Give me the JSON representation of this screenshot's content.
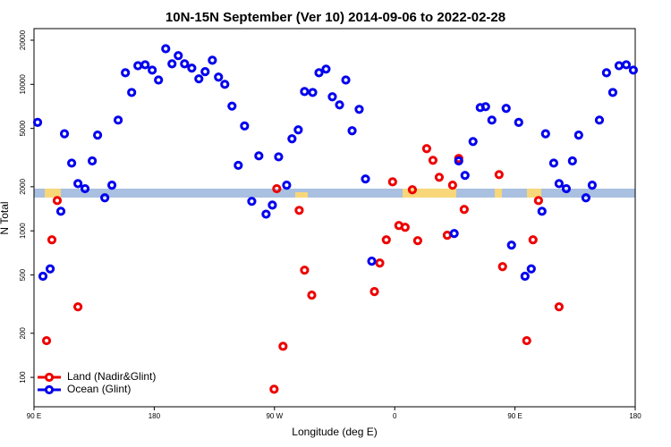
{
  "chart_data": {
    "type": "scatter",
    "title": "10N-15N September (Ver 10)   2014-09-06 to 2022-02-28",
    "x_label": "Longitude (deg E)",
    "y_label": "N Total",
    "log_y": true,
    "legend": "bottom-left",
    "xlim": [
      90,
      540
    ],
    "ylim": [
      63,
      24000
    ],
    "xticks": [
      {
        "value": 90,
        "label": "90 E"
      },
      180,
      {
        "value": 270,
        "label": "90 W"
      },
      {
        "value": 360,
        "label": "0"
      },
      {
        "value": 450,
        "label": "90 E"
      },
      {
        "value": 540,
        "label": "180"
      }
    ],
    "yticks": [
      100,
      200,
      500,
      1000,
      2000,
      5000,
      10000,
      20000
    ],
    "series": [
      {
        "name": "Land (Nadir&Glint)",
        "color": "#ee0000",
        "x": [
          99.4,
          103.4,
          107.4,
          122.9,
          271.7,
          276.4,
          269.7,
          288.5,
          292.5,
          297.9,
          344.8,
          348.8,
          353.7,
          358.4,
          363.1,
          367.8,
          373.2,
          377.2,
          383.9,
          388.6,
          393.3,
          399.3,
          403.3,
          407.9,
          412.0,
          438.1,
          440.7,
          458.8,
          463.5,
          467.6,
          483.0
        ],
        "values": [
          178,
          869,
          1610,
          303,
          1940,
          163,
          83,
          1380,
          539,
          364,
          385,
          603,
          869,
          2160,
          1088,
          1057,
          1907,
          857,
          3640,
          3030,
          2320,
          933,
          2050,
          3120,
          1400,
          2420,
          570,
          178,
          869,
          1610,
          303
        ]
      },
      {
        "name": "Ocean (Glint)",
        "color": "#0000ee",
        "x": [
          92.7,
          96.7,
          102.1,
          110.1,
          112.8,
          118.2,
          122.9,
          128.2,
          133.6,
          137.6,
          143.0,
          148.3,
          153.0,
          158.4,
          163.1,
          167.8,
          173.2,
          178.5,
          183.2,
          188.6,
          193.3,
          198.0,
          202.7,
          208.1,
          213.4,
          218.1,
          223.5,
          228.1,
          232.8,
          238.2,
          242.9,
          247.6,
          253.0,
          258.3,
          263.7,
          268.4,
          273.1,
          279.1,
          283.1,
          287.8,
          292.5,
          298.6,
          303.3,
          308.6,
          313.3,
          318.7,
          323.4,
          328.1,
          333.4,
          338.1,
          342.8,
          404.5,
          407.9,
          412.6,
          418.6,
          424.0,
          428.0,
          432.7,
          443.4,
          447.4,
          452.8,
          457.5,
          462.2,
          470.2,
          472.9,
          479.0,
          483.0,
          488.4,
          493.0,
          497.7,
          503.1,
          507.8,
          513.2,
          518.5,
          523.2,
          527.9,
          533.3,
          538.6
        ],
        "values": [
          5500,
          490,
          550,
          1360,
          4600,
          2900,
          2100,
          1940,
          3000,
          4500,
          1680,
          2050,
          5700,
          12000,
          8800,
          13400,
          13600,
          12500,
          10700,
          17500,
          13800,
          15700,
          13800,
          12900,
          10900,
          12200,
          14600,
          11200,
          10000,
          7100,
          2800,
          5200,
          1590,
          3250,
          1300,
          1500,
          3200,
          2050,
          4250,
          4890,
          8930,
          8800,
          12000,
          12700,
          8220,
          7240,
          10700,
          4820,
          6750,
          2260,
          621,
          959,
          3000,
          2390,
          4070,
          6940,
          7040,
          5700,
          6850,
          799,
          5500,
          490,
          550,
          1360,
          4600,
          2900,
          2100,
          1940,
          3000,
          4500,
          1680,
          2050,
          5700,
          12000,
          8800,
          13400,
          13600,
          12500
        ]
      }
    ]
  }
}
